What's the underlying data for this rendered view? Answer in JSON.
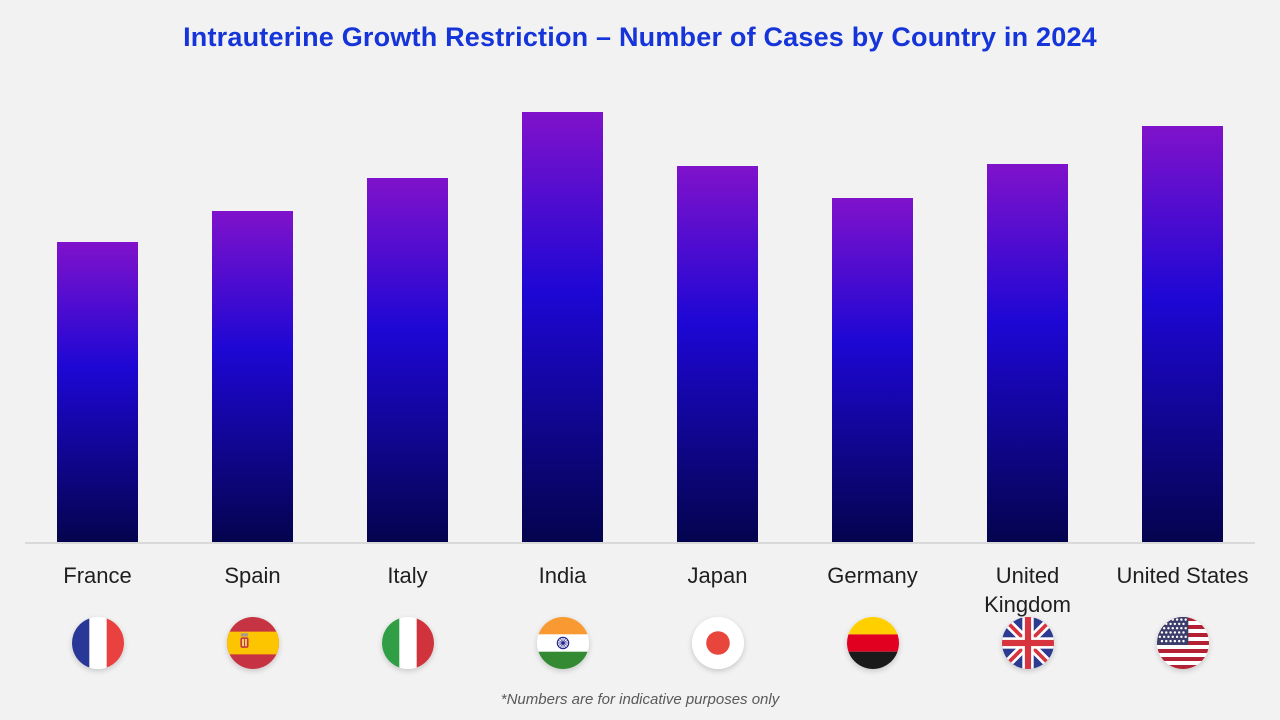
{
  "title": "Intrauterine Growth Restriction – Number of Cases by Country in 2024",
  "footnote": "*Numbers are for indicative purposes only",
  "colors": {
    "background": "#f2f2f2",
    "title_text": "#1534d9",
    "bar_gradient_top": "#8012cb",
    "bar_gradient_mid": "#1d07d4",
    "bar_gradient_bottom": "#04044e",
    "axis_line": "#d9d9d9",
    "axis_label_text": "#1f1f1f",
    "footnote_text": "#595959"
  },
  "chart_data": {
    "type": "bar",
    "title": "Intrauterine Growth Restriction – Number of Cases by Country in 2024",
    "categories": [
      "France",
      "Spain",
      "Italy",
      "India",
      "Japan",
      "Germany",
      "United Kingdom",
      "United States"
    ],
    "values": [
      300,
      331,
      364,
      430,
      376,
      344,
      378,
      416
    ],
    "value_units": "relative height units (no numeric y-axis shown; footnote says numbers are indicative only)",
    "xlabel": "",
    "ylabel": "",
    "ylim": [
      0,
      432
    ],
    "grid": false,
    "legend": false,
    "bar_style": "vertical gradient purple to blue to dark navy",
    "flags": [
      "france",
      "spain",
      "italy",
      "india",
      "japan",
      "germany",
      "united-kingdom",
      "united-states"
    ],
    "flag_note": "circular flag icons below each country label; germany flag shown with yellow band on top"
  }
}
